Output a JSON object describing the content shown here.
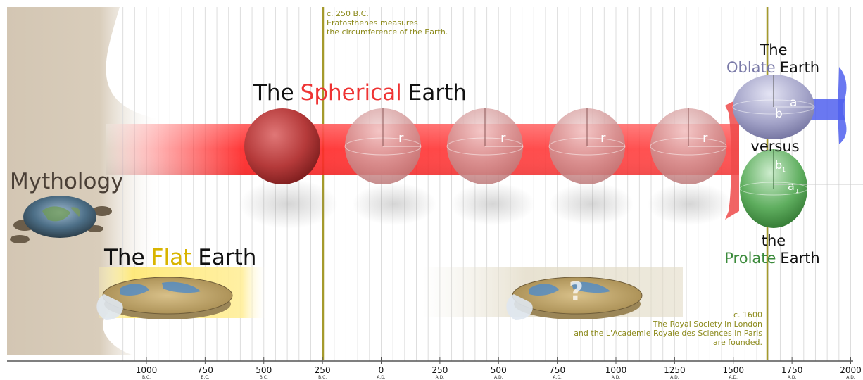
{
  "timeline": {
    "ticks": [
      {
        "num": "1000",
        "era": "B.C."
      },
      {
        "num": "750",
        "era": "B.C."
      },
      {
        "num": "500",
        "era": "B.C."
      },
      {
        "num": "250",
        "era": "B.C."
      },
      {
        "num": "0",
        "era": "A.D."
      },
      {
        "num": "250",
        "era": "A.D."
      },
      {
        "num": "500",
        "era": "A.D."
      },
      {
        "num": "750",
        "era": "A.D."
      },
      {
        "num": "1000",
        "era": "A.D."
      },
      {
        "num": "1250",
        "era": "A.D."
      },
      {
        "num": "1500",
        "era": "A.D."
      },
      {
        "num": "1750",
        "era": "A.D."
      },
      {
        "num": "2000",
        "era": "A.D."
      }
    ]
  },
  "labels": {
    "mythology": "Mythology",
    "flat_the": "The",
    "flat_word": "Flat",
    "flat_earth": "Earth",
    "spherical_the": "The",
    "spherical_word": "Spherical",
    "spherical_earth": "Earth",
    "oblate_the": "The",
    "oblate_word": "Oblate",
    "oblate_earth": "Earth",
    "versus": "versus",
    "prolate_the": "the",
    "prolate_word": "Prolate",
    "prolate_earth": "Earth"
  },
  "annotations": {
    "eratosthenes": [
      "c. 250 B.C.",
      "Eratosthenes measures",
      "the circumference of the Earth."
    ],
    "royal_society": [
      "c. 1600",
      "The Royal Society in London",
      "and the L'Academie Royale des Sciences in Paris",
      "are founded."
    ]
  },
  "symbols": {
    "radius": "r",
    "oblate_b": "b",
    "oblate_a": "a",
    "prolate_b": "b",
    "prolate_a": "a",
    "sub1": "1",
    "sub2": "1",
    "question": "?"
  },
  "colors": {
    "spherical": "#ee3333",
    "flat": "#d8b400",
    "oblate": "#7a7aa8",
    "prolate": "#3b8a3b",
    "annotation": "#8c8a1c",
    "oblate_band": "#4a5aee"
  }
}
